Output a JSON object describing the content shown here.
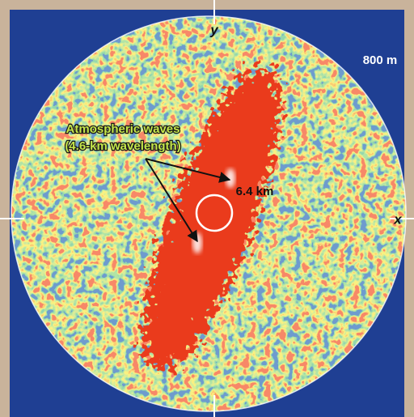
{
  "figure": {
    "y_axis_label": "y",
    "x_axis_label": "x",
    "scale_label": "800 m",
    "annotation": [
      "Atmospheric waves",
      "(4.6-km wavelength)"
    ],
    "circle_label": "6.4 km"
  }
}
